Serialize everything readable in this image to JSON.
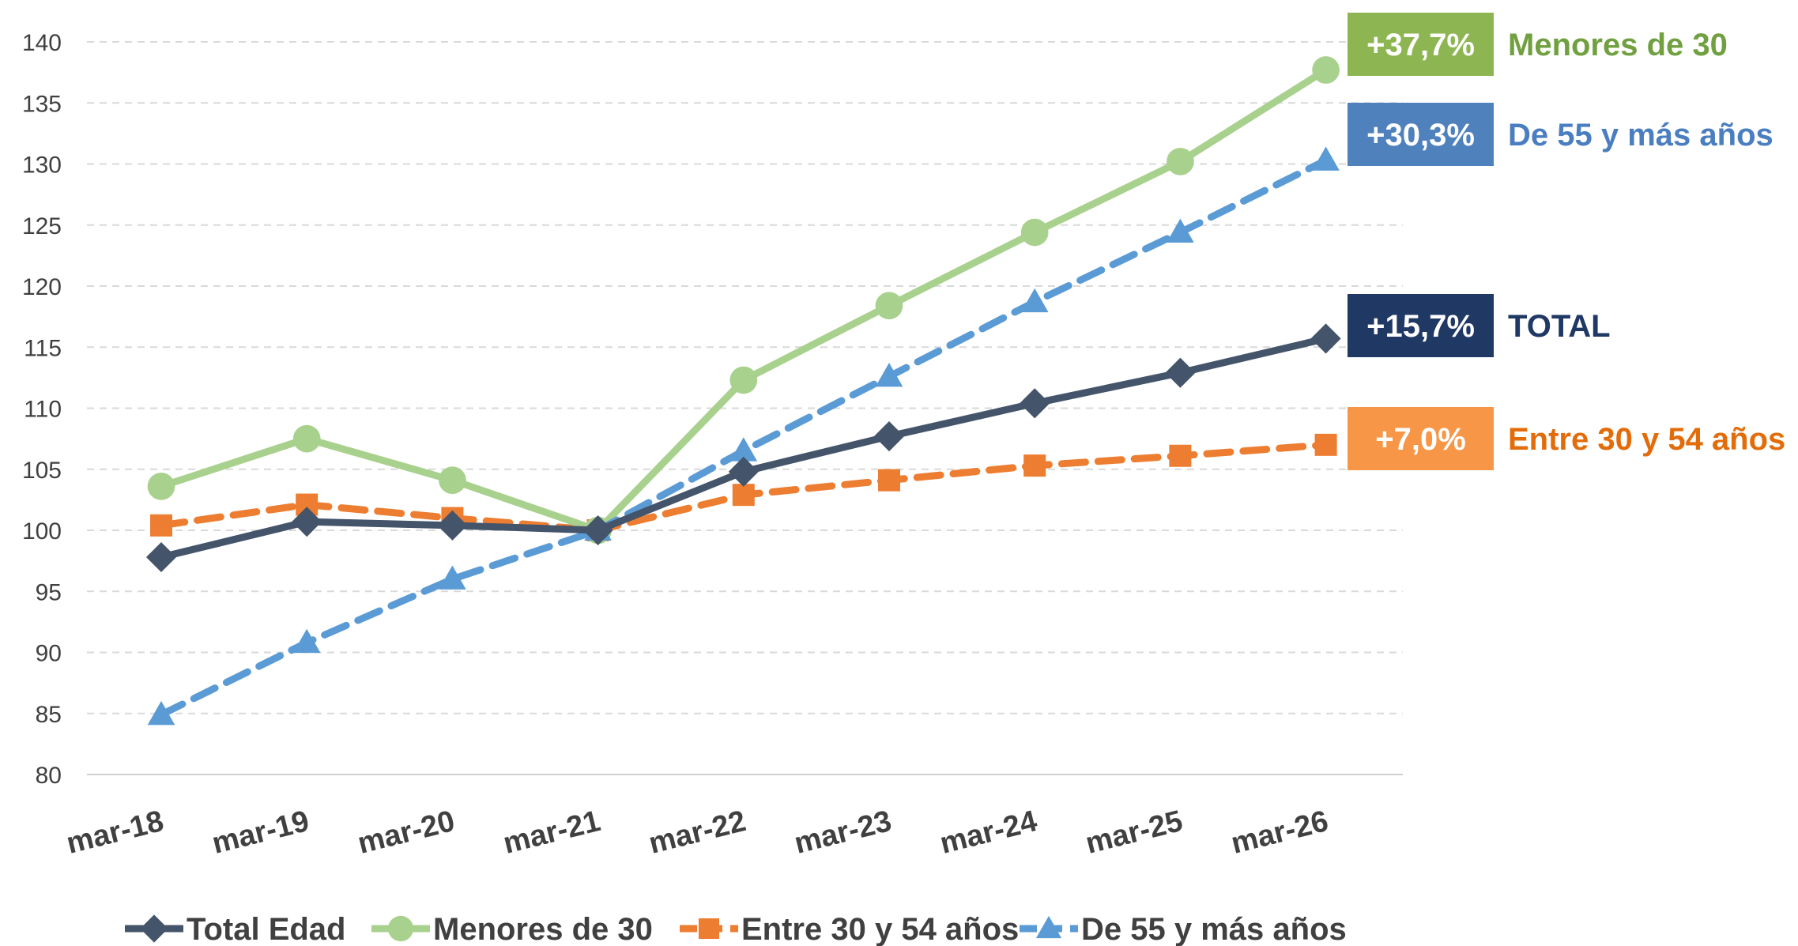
{
  "chart_data": {
    "type": "line",
    "categories": [
      "mar-18",
      "mar-19",
      "mar-20",
      "mar-21",
      "mar-22",
      "mar-23",
      "mar-24",
      "mar-25",
      "mar-26"
    ],
    "ylim": [
      80,
      140
    ],
    "yticks": [
      80,
      85,
      90,
      95,
      100,
      105,
      110,
      115,
      120,
      125,
      130,
      135,
      140
    ],
    "grid": true,
    "legend_position": "bottom",
    "series": [
      {
        "name": "Total Edad",
        "values": [
          97.8,
          100.7,
          100.4,
          100.0,
          104.8,
          107.7,
          110.4,
          112.9,
          115.7
        ],
        "color": "#44546A",
        "dashed": false,
        "marker": "diamond"
      },
      {
        "name": "Menores de 30",
        "values": [
          103.6,
          107.5,
          104.1,
          100.0,
          112.3,
          118.4,
          124.4,
          130.2,
          137.7
        ],
        "color": "#A9D18E",
        "dashed": false,
        "marker": "circle"
      },
      {
        "name": "Entre 30 y 54 años",
        "values": [
          100.4,
          102.1,
          101.0,
          100.0,
          102.9,
          104.1,
          105.3,
          106.1,
          107.0
        ],
        "color": "#ED7D31",
        "dashed": true,
        "marker": "square"
      },
      {
        "name": "De 55 y más años",
        "values": [
          84.9,
          90.8,
          96.0,
          100.0,
          106.5,
          112.6,
          118.7,
          124.4,
          130.3
        ],
        "color": "#5B9BD5",
        "dashed": true,
        "marker": "triangle"
      }
    ],
    "annotations": [
      {
        "badge": "+37,7%",
        "label": "Menores de 30",
        "badge_color": "#8DB653",
        "label_color": "#70A040",
        "series_index": 1
      },
      {
        "badge": "+30,3%",
        "label": "De 55 y más años",
        "badge_color": "#4F81BD",
        "label_color": "#4A7EC0",
        "series_index": 3
      },
      {
        "badge": "+15,7%",
        "label": "TOTAL",
        "badge_color": "#203864",
        "label_color": "#203864",
        "series_index": 0
      },
      {
        "badge": "+7,0%",
        "label": "Entre 30 y 54 años",
        "badge_color": "#F79646",
        "label_color": "#E36C0A",
        "series_index": 2
      }
    ]
  }
}
